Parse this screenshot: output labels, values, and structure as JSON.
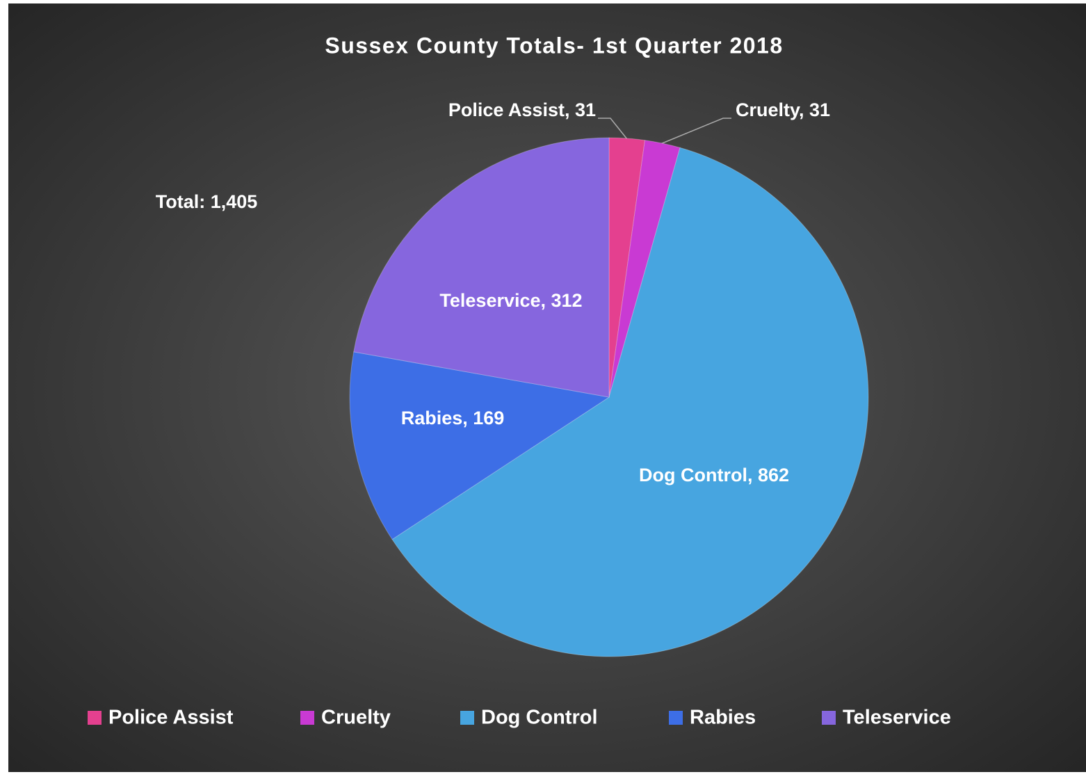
{
  "chart_data": {
    "type": "pie",
    "title": "Sussex County Totals- 1st Quarter 2018",
    "annotation": "Total:  1,405",
    "categories": [
      "Police Assist",
      "Cruelty",
      "Dog Control",
      "Rabies",
      "Teleservice"
    ],
    "values": [
      31,
      31,
      862,
      169,
      312
    ],
    "value_labels": [
      "Police Assist, 31",
      "Cruelty, 31",
      "Dog Control, 862",
      "Rabies, 169",
      "Teleservice, 312"
    ],
    "colors": [
      "#e4408f",
      "#c93ad3",
      "#47a5e0",
      "#3d6ee6",
      "#8666de"
    ],
    "legend": "bottom"
  }
}
